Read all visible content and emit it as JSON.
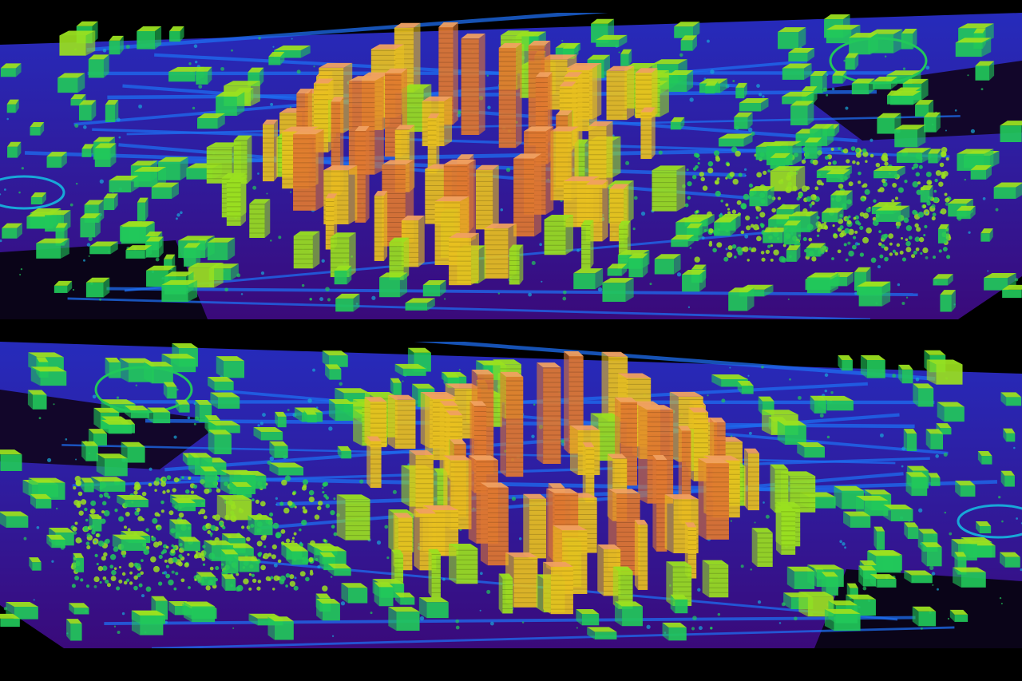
{
  "image": {
    "subject": "lidar-city-point-cloud",
    "views": [
      {
        "name": "view-upper"
      },
      {
        "name": "view-lower"
      }
    ]
  },
  "palette": {
    "background": "#000000",
    "ground_low": "#3a0a7a",
    "ground_mid": "#2a30d0",
    "road": "#1e6ef0",
    "water": "#18a8d8",
    "low_building": "#22c85a",
    "mid_building": "#9ae020",
    "tall_building": "#e8c020",
    "tower": "#e07830"
  }
}
